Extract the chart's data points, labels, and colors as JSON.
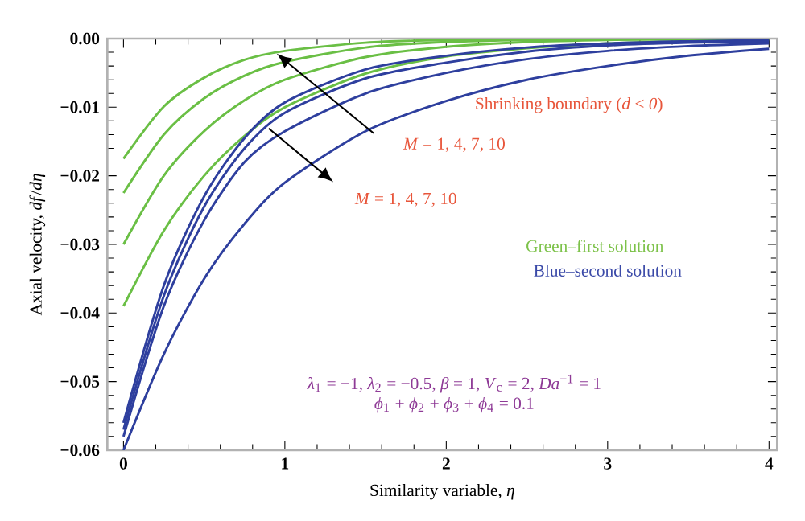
{
  "chart_data": {
    "type": "line",
    "xlabel": "Similarity variable, *η*",
    "ylabel": "Axial velocity, *df*/*dη*",
    "x": [
      0,
      0.25,
      0.5,
      0.75,
      1,
      1.5,
      2,
      2.5,
      3,
      3.5,
      4
    ],
    "series": [
      {
        "color": "#6abf45",
        "values": [
          -0.0175,
          -0.0099,
          -0.0057,
          -0.0031,
          -0.0018,
          -0.0006,
          -0.0002,
          -0.0001,
          0,
          0,
          0
        ]
      },
      {
        "color": "#6abf45",
        "values": [
          -0.0225,
          -0.014,
          -0.0087,
          -0.0054,
          -0.0034,
          -0.0013,
          -0.0005,
          -0.0002,
          -0.0001,
          0,
          0
        ]
      },
      {
        "color": "#6abf45",
        "values": [
          -0.03,
          -0.02,
          -0.0135,
          -0.009,
          -0.006,
          -0.0027,
          -0.0012,
          -0.0005,
          -0.0002,
          -0.0001,
          0
        ]
      },
      {
        "color": "#6abf45",
        "values": [
          -0.039,
          -0.028,
          -0.02,
          -0.0142,
          -0.01,
          -0.0051,
          -0.0026,
          -0.0014,
          -0.0007,
          -0.0004,
          -0.0002
        ]
      },
      {
        "color": "#2e3f9e",
        "values": [
          -0.056,
          -0.036,
          -0.023,
          -0.0145,
          -0.0093,
          -0.0045,
          -0.0025,
          -0.0013,
          -0.0007,
          -0.0004,
          -0.0002
        ]
      },
      {
        "color": "#2e3f9e",
        "values": [
          -0.057,
          -0.0375,
          -0.0245,
          -0.016,
          -0.0108,
          -0.0058,
          -0.0035,
          -0.0019,
          -0.001,
          -0.0006,
          -0.0004
        ]
      },
      {
        "color": "#2e3f9e",
        "values": [
          -0.058,
          -0.039,
          -0.0265,
          -0.018,
          -0.0135,
          -0.008,
          -0.005,
          -0.003,
          -0.0018,
          -0.0011,
          -0.0007
        ]
      },
      {
        "color": "#2e3f9e",
        "values": [
          -0.06,
          -0.046,
          -0.035,
          -0.027,
          -0.021,
          -0.0135,
          -0.0091,
          -0.006,
          -0.004,
          -0.0025,
          -0.0015
        ]
      }
    ],
    "xlim": [
      -0.1,
      4.05
    ],
    "ylim": [
      -0.06,
      0
    ],
    "xticks": [
      0,
      1,
      2,
      3,
      4
    ],
    "yticks": [
      {
        "value": -0.06,
        "label": "−0.06"
      },
      {
        "value": -0.05,
        "label": "−0.05"
      },
      {
        "value": -0.04,
        "label": "−0.04"
      },
      {
        "value": -0.03,
        "label": "−0.03"
      },
      {
        "value": -0.02,
        "label": "−0.02"
      },
      {
        "value": -0.01,
        "label": "−0.01"
      },
      {
        "value": 0,
        "label": "0.00"
      }
    ],
    "annotations": [
      "Shrinking boundary (*d* < *0*)",
      "*M* = 1, 4, 7, 10",
      "*M* = 1, 4, 7, 10",
      "Green–first solution",
      "Blue–second solution",
      "*λ*$_{1}$ = −1, *λ*$_{2}$ = −0.5, *β* = 1, *V*$_{c}$ = 2, *Da*$^{−1}$ = 1",
      "*ϕ*$_{1}$ + *ϕ*$_{2}$ + *ϕ*$_{3}$ + *ϕ*$_{4}$ = 0.1"
    ],
    "marker": "none",
    "line_style": "solid",
    "grid": false
  }
}
